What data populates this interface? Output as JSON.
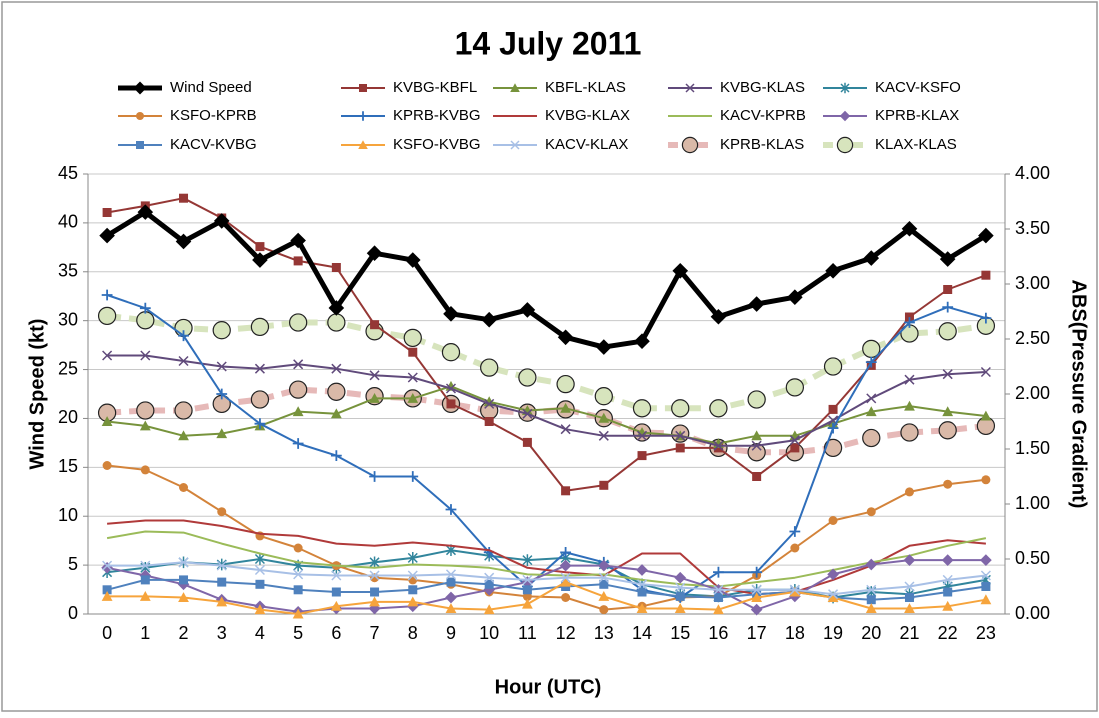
{
  "chart_data": {
    "type": "line",
    "title": "14 July 2011",
    "x_label": "Hour (UTC)",
    "y_label": "Wind Speed (kt)",
    "y2_label": "ABS(Pressure Gradient)",
    "categories": [
      0,
      1,
      2,
      3,
      4,
      5,
      6,
      7,
      8,
      9,
      10,
      11,
      12,
      13,
      14,
      15,
      16,
      17,
      18,
      19,
      20,
      21,
      22,
      23
    ],
    "ylim": [
      0,
      45
    ],
    "yticks": [
      0,
      5,
      10,
      15,
      20,
      25,
      30,
      35,
      40,
      45
    ],
    "y2lim": [
      0,
      4
    ],
    "y2ticks": [
      {
        "value": 0,
        "label": "0.00"
      },
      {
        "value": 0.5,
        "label": "0.50"
      },
      {
        "value": 1,
        "label": "1.00"
      },
      {
        "value": 1.5,
        "label": "1.50"
      },
      {
        "value": 2,
        "label": "2.00"
      },
      {
        "value": 2.5,
        "label": "2.50"
      },
      {
        "value": 3,
        "label": "3.00"
      },
      {
        "value": 3.5,
        "label": "3.50"
      },
      {
        "value": 4,
        "label": "4.00"
      }
    ],
    "grid": true,
    "series": [
      {
        "name": "Wind Speed",
        "color": "#000000",
        "marker": "diamond",
        "line_width": 5,
        "values": [
          38.7,
          41.1,
          38.1,
          40.2,
          36.2,
          38.2,
          31.3,
          36.9,
          36.2,
          30.7,
          30.1,
          31.1,
          28.3,
          27.3,
          27.9,
          35.1,
          30.4,
          31.7,
          32.4,
          35.1,
          36.4,
          39.4,
          36.3,
          38.7
        ]
      },
      {
        "name": "KVBG-KBFL",
        "color": "#953735",
        "marker": "square",
        "axis": "y2",
        "values": [
          3.65,
          3.71,
          3.78,
          3.6,
          3.34,
          3.21,
          3.15,
          2.63,
          2.38,
          1.91,
          1.75,
          1.56,
          1.12,
          1.17,
          1.44,
          1.51,
          1.51,
          1.25,
          1.51,
          1.86,
          2.26,
          2.7,
          2.95,
          3.08
        ]
      },
      {
        "name": "KBFL-KLAS",
        "color": "#77933c",
        "marker": "triangle",
        "axis": "y2",
        "values": [
          1.75,
          1.71,
          1.62,
          1.64,
          1.71,
          1.84,
          1.82,
          1.96,
          1.96,
          2.07,
          1.93,
          1.85,
          1.87,
          1.78,
          1.65,
          1.62,
          1.55,
          1.62,
          1.62,
          1.73,
          1.84,
          1.89,
          1.84,
          1.8
        ]
      },
      {
        "name": "KVBG-KLAS",
        "color": "#604a7b",
        "marker": "x",
        "axis": "y2",
        "values": [
          2.35,
          2.35,
          2.3,
          2.25,
          2.23,
          2.27,
          2.23,
          2.17,
          2.15,
          2.05,
          1.91,
          1.82,
          1.68,
          1.62,
          1.62,
          1.62,
          1.53,
          1.53,
          1.58,
          1.76,
          1.96,
          2.13,
          2.18,
          2.2
        ]
      },
      {
        "name": "KACV-KSFO",
        "color": "#31859c",
        "marker": "asterisk",
        "axis": "y2",
        "values": [
          0.38,
          0.42,
          0.47,
          0.45,
          0.5,
          0.44,
          0.42,
          0.47,
          0.51,
          0.58,
          0.53,
          0.49,
          0.51,
          0.45,
          0.27,
          0.18,
          0.16,
          0.22,
          0.22,
          0.15,
          0.2,
          0.18,
          0.25,
          0.31
        ]
      },
      {
        "name": "KSFO-KPRB",
        "color": "#d3833a",
        "marker": "circle",
        "axis": "y2",
        "values": [
          1.35,
          1.31,
          1.15,
          0.93,
          0.71,
          0.6,
          0.44,
          0.33,
          0.31,
          0.27,
          0.2,
          0.16,
          0.15,
          0.04,
          0.07,
          0.15,
          0.16,
          0.35,
          0.6,
          0.85,
          0.93,
          1.11,
          1.18,
          1.22
        ]
      },
      {
        "name": "KPRB-KVBG",
        "color": "#2f6eba",
        "marker": "plus",
        "axis": "y2",
        "values": [
          2.9,
          2.78,
          2.53,
          2.0,
          1.73,
          1.55,
          1.44,
          1.25,
          1.25,
          0.95,
          0.56,
          0.25,
          0.56,
          0.47,
          0.22,
          0.15,
          0.38,
          0.38,
          0.75,
          1.69,
          2.29,
          2.65,
          2.79,
          2.69
        ]
      },
      {
        "name": "KVBG-KLAX",
        "color": "#b03a3a",
        "marker": "none",
        "axis": "y2",
        "values": [
          0.82,
          0.85,
          0.85,
          0.8,
          0.73,
          0.71,
          0.64,
          0.62,
          0.65,
          0.62,
          0.58,
          0.42,
          0.38,
          0.35,
          0.55,
          0.55,
          0.24,
          0.18,
          0.2,
          0.31,
          0.44,
          0.62,
          0.67,
          0.64
        ]
      },
      {
        "name": "KACV-KPRB",
        "color": "#9bbb59",
        "marker": "none",
        "axis": "y2",
        "values": [
          0.69,
          0.75,
          0.74,
          0.64,
          0.55,
          0.47,
          0.44,
          0.42,
          0.45,
          0.44,
          0.42,
          0.36,
          0.35,
          0.36,
          0.31,
          0.27,
          0.25,
          0.29,
          0.33,
          0.4,
          0.47,
          0.53,
          0.62,
          0.69
        ]
      },
      {
        "name": "KPRB-KLAX",
        "color": "#7f66a8",
        "marker": "diamond",
        "axis": "y2",
        "values": [
          0.42,
          0.35,
          0.27,
          0.13,
          0.07,
          0.02,
          0.05,
          0.05,
          0.07,
          0.15,
          0.22,
          0.29,
          0.44,
          0.44,
          0.4,
          0.33,
          0.22,
          0.04,
          0.16,
          0.36,
          0.45,
          0.49,
          0.49,
          0.49
        ]
      },
      {
        "name": "KACV-KVBG",
        "color": "#4f81bd",
        "marker": "square",
        "axis": "y2",
        "values": [
          0.22,
          0.31,
          0.31,
          0.29,
          0.27,
          0.22,
          0.2,
          0.2,
          0.22,
          0.29,
          0.27,
          0.22,
          0.25,
          0.27,
          0.2,
          0.16,
          0.15,
          0.18,
          0.2,
          0.15,
          0.13,
          0.15,
          0.2,
          0.25
        ]
      },
      {
        "name": "KSFO-KVBG",
        "color": "#f6a43c",
        "marker": "triangle",
        "axis": "y2",
        "values": [
          0.16,
          0.16,
          0.15,
          0.11,
          0.04,
          0.0,
          0.07,
          0.11,
          0.11,
          0.05,
          0.04,
          0.09,
          0.29,
          0.16,
          0.05,
          0.05,
          0.04,
          0.15,
          0.2,
          0.15,
          0.05,
          0.05,
          0.07,
          0.13
        ]
      },
      {
        "name": "KACV-KLAX",
        "color": "#a8c0e6",
        "marker": "x",
        "axis": "y2",
        "values": [
          0.44,
          0.44,
          0.47,
          0.44,
          0.4,
          0.36,
          0.35,
          0.35,
          0.35,
          0.36,
          0.33,
          0.31,
          0.33,
          0.33,
          0.27,
          0.24,
          0.22,
          0.22,
          0.22,
          0.18,
          0.22,
          0.25,
          0.31,
          0.35
        ]
      },
      {
        "name": "KPRB-KLAS",
        "color": "#e6b9b8",
        "marker": "circle",
        "marker_color": "#d9b9a8",
        "dash": true,
        "line_width": 6,
        "axis": "y2",
        "values": [
          1.83,
          1.85,
          1.85,
          1.91,
          1.95,
          2.04,
          2.02,
          1.98,
          1.96,
          1.91,
          1.85,
          1.83,
          1.86,
          1.78,
          1.65,
          1.64,
          1.51,
          1.47,
          1.47,
          1.51,
          1.6,
          1.65,
          1.67,
          1.71
        ]
      },
      {
        "name": "KLAX-KLAS",
        "color": "#d7e4bd",
        "marker": "circle",
        "marker_color": "#d7e4bd",
        "dash": true,
        "line_width": 6,
        "axis": "y2",
        "values": [
          2.71,
          2.67,
          2.6,
          2.58,
          2.61,
          2.65,
          2.65,
          2.57,
          2.51,
          2.38,
          2.24,
          2.15,
          2.09,
          1.98,
          1.87,
          1.87,
          1.87,
          1.95,
          2.06,
          2.25,
          2.41,
          2.55,
          2.57,
          2.62
        ]
      }
    ]
  }
}
